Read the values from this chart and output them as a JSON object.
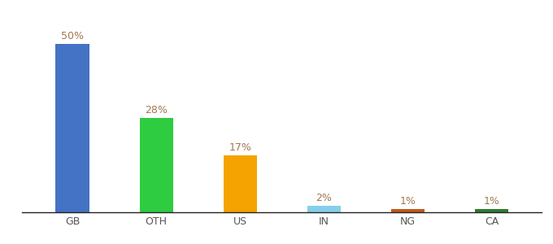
{
  "categories": [
    "GB",
    "OTH",
    "US",
    "IN",
    "NG",
    "CA"
  ],
  "values": [
    50,
    28,
    17,
    2,
    1,
    1
  ],
  "bar_colors": [
    "#4472c4",
    "#2ecc40",
    "#f4a300",
    "#87ceeb",
    "#c25a1a",
    "#2d7d32"
  ],
  "label_color": "#a07850",
  "tick_color": "#555555",
  "background_color": "#ffffff",
  "ylim": [
    0,
    58
  ],
  "bar_width": 0.4,
  "figsize": [
    6.8,
    3.0
  ],
  "dpi": 100,
  "label_fontsize": 9,
  "tick_fontsize": 9
}
